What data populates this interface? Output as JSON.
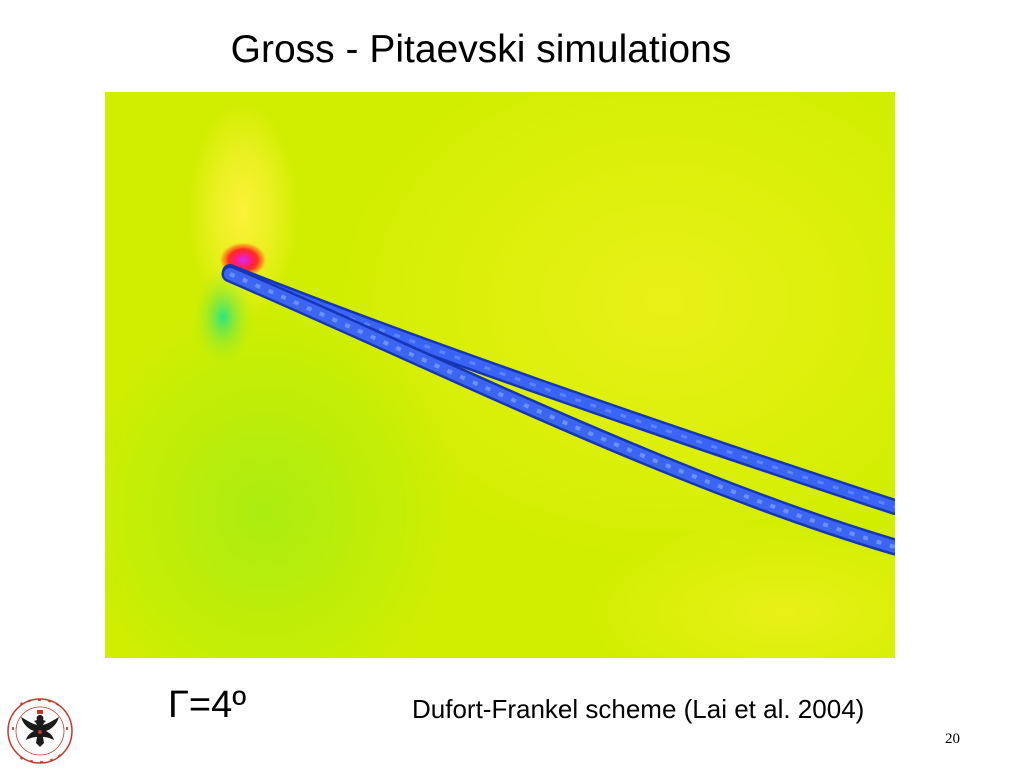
{
  "slide": {
    "title": "Gross - Pitaevski simulations",
    "gamma_label": "Γ=4º",
    "caption": "Dufort-Frankel scheme (Lai et al. 2004)",
    "page_number": "20"
  },
  "logo": {
    "seal_text": "UNIVERSITAS VARSOVIENSIS · GEOPHYSICA"
  },
  "figure": {
    "colors": {
      "background": "#d7f000",
      "yellow_lobe": "#fff23c",
      "green_lobe": "#1ee68c",
      "core_red": "#ff1e2d",
      "core_magenta": "#d22cff",
      "vortex_blue": "#2a50ee",
      "vortex_edge": "#1636b8"
    }
  }
}
